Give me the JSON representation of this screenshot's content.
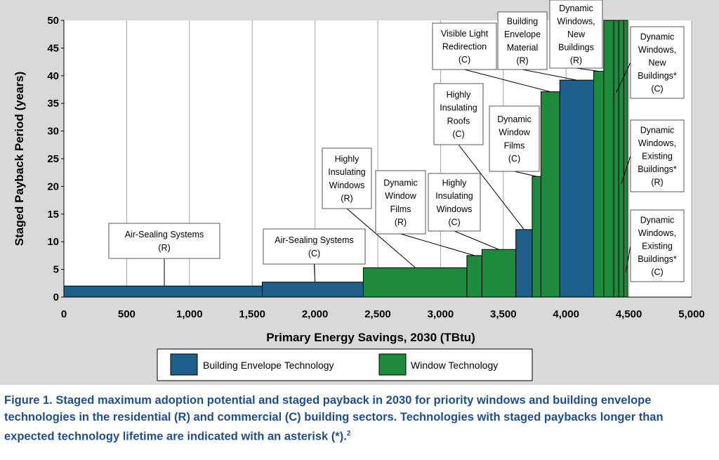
{
  "chart_data": {
    "type": "bar",
    "subtype": "variable-width step bars",
    "xlabel": "Primary Energy Savings, 2030 (TBtu)",
    "ylabel": "Staged Payback Period (years)",
    "xlim": [
      0,
      5000
    ],
    "ylim": [
      0,
      50
    ],
    "xticks": [
      "0",
      "500",
      "1,000",
      "1,500",
      "2,000",
      "2,500",
      "3,000",
      "3,500",
      "4,000",
      "4,500",
      "5,000"
    ],
    "xtick_values": [
      0,
      500,
      1000,
      1500,
      2000,
      2500,
      3000,
      3500,
      4000,
      4500,
      5000
    ],
    "yticks": [
      "0",
      "5",
      "10",
      "15",
      "20",
      "25",
      "30",
      "35",
      "40",
      "45",
      "50"
    ],
    "ytick_values": [
      0,
      5,
      10,
      15,
      20,
      25,
      30,
      35,
      40,
      45,
      50
    ],
    "grid": "vertical",
    "legend": [
      {
        "name": "Building Envelope Technology",
        "color": "#1f5f8b"
      },
      {
        "name": "Window Technology",
        "color": "#1e8a3c"
      }
    ],
    "bars": [
      {
        "x0": 0,
        "x1": 1580,
        "y": 2.0,
        "series": "Building Envelope Technology"
      },
      {
        "x0": 1580,
        "x1": 2385,
        "y": 2.7,
        "series": "Building Envelope Technology"
      },
      {
        "x0": 2385,
        "x1": 3210,
        "y": 5.3,
        "series": "Window Technology"
      },
      {
        "x0": 3210,
        "x1": 3330,
        "y": 7.5,
        "series": "Window Technology"
      },
      {
        "x0": 3330,
        "x1": 3600,
        "y": 8.6,
        "series": "Window Technology"
      },
      {
        "x0": 3600,
        "x1": 3730,
        "y": 12.2,
        "series": "Building Envelope Technology"
      },
      {
        "x0": 3730,
        "x1": 3800,
        "y": 21.8,
        "series": "Window Technology"
      },
      {
        "x0": 3800,
        "x1": 3950,
        "y": 37.1,
        "series": "Window Technology"
      },
      {
        "x0": 3950,
        "x1": 4220,
        "y": 39.2,
        "series": "Building Envelope Technology"
      },
      {
        "x0": 4220,
        "x1": 4300,
        "y": 40.8,
        "series": "Window Technology"
      },
      {
        "x0": 4300,
        "x1": 4380,
        "y": 50,
        "series": "Window Technology"
      },
      {
        "x0": 4380,
        "x1": 4420,
        "y": 50,
        "series": "Window Technology"
      },
      {
        "x0": 4420,
        "x1": 4460,
        "y": 50,
        "series": "Window Technology"
      },
      {
        "x0": 4460,
        "x1": 4490,
        "y": 50,
        "series": "Window Technology"
      }
    ],
    "annotations": [
      {
        "lines": [
          "Air-Sealing Systems",
          "(R)"
        ],
        "target": [
          800,
          2.0
        ]
      },
      {
        "lines": [
          "Air-Sealing Systems",
          "(C)"
        ],
        "target": [
          2000,
          2.7
        ]
      },
      {
        "lines": [
          "Highly",
          "Insulating",
          "Windows",
          "(R)"
        ],
        "target": [
          2800,
          5.3
        ]
      },
      {
        "lines": [
          "Dynamic",
          "Window",
          "Films",
          "(R)"
        ],
        "target": [
          3270,
          7.5
        ]
      },
      {
        "lines": [
          "Highly",
          "Insulating",
          "Windows",
          "(C)"
        ],
        "target": [
          3465,
          8.6
        ]
      },
      {
        "lines": [
          "Highly",
          "Insulating",
          "Roofs",
          "(C)"
        ],
        "target": [
          3665,
          12.2
        ]
      },
      {
        "lines": [
          "Dynamic",
          "Window",
          "Films",
          "(C)"
        ],
        "target": [
          3765,
          21.8
        ]
      },
      {
        "lines": [
          "Visible Light",
          "Redirection",
          "(C)"
        ],
        "target": [
          3875,
          37.1
        ]
      },
      {
        "lines": [
          "Building",
          "Envelope",
          "Material",
          "(R)"
        ],
        "target": [
          4085,
          39.2
        ]
      },
      {
        "lines": [
          "Dynamic",
          "Windows,",
          "New",
          "Buildings",
          "(R)"
        ],
        "target": [
          4260,
          40.8
        ]
      },
      {
        "lines": [
          "Dynamic",
          "Windows,",
          "New",
          "Buildings*",
          "(C)"
        ],
        "target": [
          4400,
          37
        ]
      },
      {
        "lines": [
          "Dynamic",
          "Windows,",
          "Existing",
          "Buildings*",
          "(R)"
        ],
        "target": [
          4440,
          20.5
        ]
      },
      {
        "lines": [
          "Dynamic",
          "Windows,",
          "Existing",
          "Buildings*",
          "(C)"
        ],
        "target": [
          4475,
          4.5
        ]
      }
    ]
  },
  "caption": {
    "text": "Figure 1. Staged maximum adoption potential and staged payback in 2030 for priority windows and building envelope technologies in the residential (R) and commercial (C) building sectors. Technologies with staged paybacks longer than expected technology lifetime are indicated with an asterisk (*).",
    "superscript": "2"
  }
}
